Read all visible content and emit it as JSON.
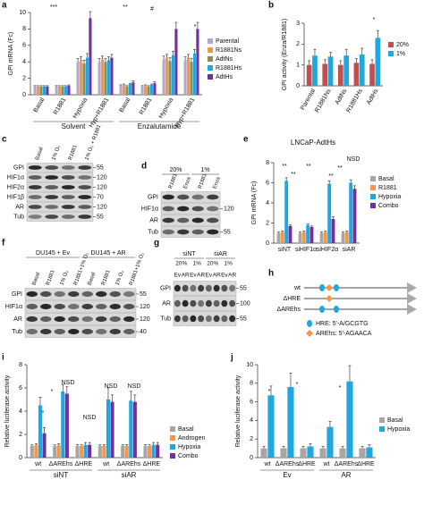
{
  "chart_data": [
    {
      "type": "bar",
      "label": "a",
      "ylabel": "GPI mRNA (Fc)",
      "categories": [
        "Basal",
        "R1881",
        "Hypoxia",
        "Hyp+R1881",
        "Basal",
        "R1881",
        "Hypoxia",
        "Hyp+R1881"
      ],
      "groups": [
        "Solvent",
        "Enzalutamide"
      ],
      "series": [
        {
          "name": "Parental",
          "color": "#b4a7c9",
          "values": [
            1,
            1,
            4,
            4,
            1.1,
            1,
            4.3,
            4.2
          ],
          "errors": [
            0.1,
            0.1,
            0.4,
            0.4,
            0.1,
            0.1,
            0.4,
            0.4
          ]
        },
        {
          "name": "R1881Ns",
          "color": "#f79646",
          "values": [
            1,
            1,
            4.2,
            4.3,
            1.2,
            1.1,
            4.5,
            4.5
          ],
          "errors": [
            0.1,
            0.1,
            0.4,
            0.4,
            0.1,
            0.1,
            0.4,
            0.4
          ]
        },
        {
          "name": "AdtNs",
          "color": "#8c8c5a",
          "values": [
            1,
            1,
            3.8,
            4,
            1,
            1,
            4.1,
            4
          ],
          "errors": [
            0.1,
            0.1,
            0.4,
            0.4,
            0.1,
            0.1,
            0.4,
            0.4
          ]
        },
        {
          "name": "R1881Hs",
          "color": "#1fa8e0",
          "values": [
            1,
            1,
            4.5,
            4.2,
            1.3,
            1.2,
            4.8,
            5
          ],
          "errors": [
            0.1,
            0.1,
            0.5,
            0.4,
            0.1,
            0.1,
            0.5,
            0.5
          ]
        },
        {
          "name": "AdtHs",
          "color": "#7030a0",
          "values": [
            1,
            1.1,
            9.3,
            4.5,
            1.5,
            1.4,
            8,
            8
          ],
          "errors": [
            0.1,
            0.1,
            0.8,
            0.4,
            0.2,
            0.2,
            0.8,
            0.8
          ]
        }
      ],
      "annotations": [
        "***",
        "**",
        "#",
        "*"
      ],
      "ylim": [
        0,
        10
      ],
      "yticks": [
        0,
        2,
        4,
        6,
        8,
        10
      ],
      "legend": "right"
    },
    {
      "type": "bar",
      "label": "b",
      "ylabel": "GPI activity (Enza/R1881)",
      "categories": [
        "Parental",
        "R1881Ns",
        "AdtNs",
        "R1881Hs",
        "AdtHs"
      ],
      "series": [
        {
          "name": "20%",
          "color": "#c0504d",
          "values": [
            1,
            1.05,
            1,
            1.1,
            1.05
          ],
          "errors": [
            0.2,
            0.2,
            0.2,
            0.2,
            0.2
          ]
        },
        {
          "name": "1%",
          "color": "#1fa8e0",
          "values": [
            1.45,
            1.4,
            1.45,
            1.5,
            2.3
          ],
          "errors": [
            0.3,
            0.2,
            0.3,
            0.3,
            0.35
          ]
        }
      ],
      "annotations": [
        "*"
      ],
      "ylim": [
        0,
        3
      ],
      "yticks": [
        0,
        1,
        2,
        3
      ],
      "legend": "right"
    },
    {
      "type": "bar",
      "label": "e",
      "title": "LNCaP-AdtHs",
      "ylabel": "GPI mRNA (Fc)",
      "categories": [
        "siNT",
        "siHIF1α",
        "siHIF2α",
        "siAR"
      ],
      "series": [
        {
          "name": "Basal",
          "color": "#a6a6a6",
          "values": [
            1,
            1,
            1,
            1
          ],
          "errors": [
            0.1,
            0.1,
            0.1,
            0.1
          ]
        },
        {
          "name": "R1881",
          "color": "#f79646",
          "values": [
            1.1,
            1.1,
            1.1,
            1.1
          ],
          "errors": [
            0.1,
            0.1,
            0.1,
            0.1
          ]
        },
        {
          "name": "Hypoxia",
          "color": "#1fa8e0",
          "values": [
            6.2,
            1.8,
            5.9,
            6
          ],
          "errors": [
            0.3,
            0.1,
            0.3,
            0.3
          ]
        },
        {
          "name": "Combo",
          "color": "#7030a0",
          "values": [
            1.7,
            1.6,
            2.4,
            5.4
          ],
          "errors": [
            0.1,
            0.1,
            0.2,
            0.3
          ]
        }
      ],
      "annotations": [
        "**",
        "**",
        "**",
        "**",
        "**",
        "NSD"
      ],
      "ylim": [
        0,
        8
      ],
      "yticks": [
        0,
        2,
        4,
        6,
        8
      ],
      "legend": "right"
    },
    {
      "type": "bar",
      "label": "i",
      "ylabel": "Relative luciferase activity",
      "categories": [
        "wt",
        "ΔAREhs",
        "ΔHRE",
        "wt",
        "ΔAREhs",
        "ΔHRE"
      ],
      "groups": [
        "siNT",
        "siAR"
      ],
      "series": [
        {
          "name": "Basal",
          "color": "#a6a6a6",
          "values": [
            1,
            1,
            1,
            1,
            1,
            1
          ],
          "errors": [
            0.1,
            0.1,
            0.1,
            0.1,
            0.1,
            0.1
          ]
        },
        {
          "name": "Androgen",
          "color": "#f79646",
          "values": [
            1.1,
            1.1,
            1,
            1,
            1,
            1
          ],
          "errors": [
            0.1,
            0.1,
            0.1,
            0.1,
            0.1,
            0.1
          ]
        },
        {
          "name": "Hypoxia",
          "color": "#1fa8e0",
          "values": [
            4.5,
            5.7,
            1.1,
            5,
            4.9,
            1.1
          ],
          "errors": [
            0.7,
            0.6,
            0.2,
            1,
            0.8,
            0.2
          ]
        },
        {
          "name": "Combo",
          "color": "#7030a0",
          "values": [
            2.1,
            5.5,
            1.1,
            4.8,
            4.8,
            1.1
          ],
          "errors": [
            0.5,
            0.6,
            0.2,
            0.6,
            0.6,
            0.2
          ]
        }
      ],
      "annotations": [
        "*",
        "*",
        "NSD",
        "NSD",
        "NSD",
        "NSD"
      ],
      "ylim": [
        0,
        8
      ],
      "yticks": [
        0,
        2,
        4,
        6,
        8
      ],
      "legend": "right"
    },
    {
      "type": "bar",
      "label": "j",
      "ylabel": "Relative luciferase activity",
      "categories": [
        "wt",
        "ΔAREhs",
        "ΔHRE",
        "wt",
        "ΔAREhs",
        "ΔHRE"
      ],
      "groups": [
        "Ev",
        "AR"
      ],
      "series": [
        {
          "name": "Basal",
          "color": "#a6a6a6",
          "values": [
            1,
            1,
            1,
            1,
            1,
            1
          ],
          "errors": [
            0.2,
            0.2,
            0.2,
            0.2,
            0.2,
            0.2
          ]
        },
        {
          "name": "Hypoxia",
          "color": "#1fa8e0",
          "values": [
            6.7,
            7.6,
            1.2,
            3.3,
            8.2,
            1.1
          ],
          "errors": [
            1,
            1.5,
            0.3,
            0.6,
            1.7,
            0.3
          ]
        }
      ],
      "annotations": [
        "*",
        "*",
        "*"
      ],
      "ylim": [
        0,
        10
      ],
      "yticks": [
        0,
        2,
        4,
        6,
        8,
        10
      ],
      "legend": "right"
    }
  ],
  "blots": [
    {
      "label": "c",
      "lanes": [
        "Basal",
        "1% O₂",
        "R1881",
        "1% O₂ + R1881"
      ],
      "rows": [
        "GPI",
        "HIF1α",
        "HIF2α",
        "HIF1β",
        "AR",
        "Tub"
      ],
      "markers": [
        "55",
        "120",
        "120",
        "70",
        "120",
        "55"
      ]
    },
    {
      "label": "d",
      "groups": [
        "20%",
        "1%"
      ],
      "lanes": [
        "R1881",
        "Enza",
        "R1881",
        "Enza"
      ],
      "rows": [
        "GPI",
        "HIF1α",
        "AR",
        "Tub"
      ],
      "markers": [
        null,
        "120",
        null,
        "55"
      ]
    },
    {
      "label": "f",
      "groups": [
        "DU145 + Ev",
        "DU145 + AR"
      ],
      "lanes": [
        "Basal",
        "R1881",
        "1% O₂",
        "R1881+1% O₂",
        "Basal",
        "R1881",
        "1% O₂",
        "R1881+1% O₂"
      ],
      "rows": [
        "GPI",
        "HIF1α",
        "AR",
        "Tub"
      ],
      "markers": [
        "55",
        "120",
        "120",
        "40"
      ]
    },
    {
      "label": "g",
      "groups": [
        "siNT",
        "siAR"
      ],
      "subgroups": [
        "20%",
        "1%",
        "20%",
        "1%"
      ],
      "lanes": [
        "Ev",
        "AR",
        "Ev",
        "AR",
        "Ev",
        "AR",
        "Ev",
        "AR"
      ],
      "rows": [
        "GPI",
        "AR",
        "Tub"
      ],
      "markers": [
        "55",
        "100",
        "55"
      ]
    }
  ],
  "diagram": {
    "label": "h",
    "constructs": [
      "wt",
      "ΔHRE",
      "ΔAREhs"
    ],
    "legend": [
      "HRE: 5'-A/GCGTG",
      "AREhs: 5'-AGAACA"
    ]
  }
}
